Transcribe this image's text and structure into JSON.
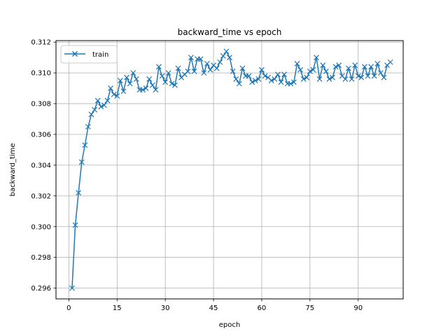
{
  "chart_data": {
    "type": "line",
    "title": "backward_time vs epoch",
    "xlabel": "epoch",
    "ylabel": "backward_time",
    "xlim": [
      -4.0,
      104.0
    ],
    "ylim": [
      0.2953,
      0.3121
    ],
    "x_ticks": [
      0,
      15,
      30,
      45,
      60,
      75,
      90
    ],
    "y_ticks": [
      0.296,
      0.298,
      0.3,
      0.302,
      0.304,
      0.306,
      0.308,
      0.31,
      0.312
    ],
    "y_tick_labels": [
      "0.296",
      "0.298",
      "0.300",
      "0.302",
      "0.304",
      "0.306",
      "0.308",
      "0.310",
      "0.312"
    ],
    "grid": true,
    "legend_position": "upper-left",
    "series": [
      {
        "name": "train",
        "color": "#1f77b4",
        "marker": "x",
        "x": [
          1,
          2,
          3,
          4,
          5,
          6,
          7,
          8,
          9,
          10,
          11,
          12,
          13,
          14,
          15,
          16,
          17,
          18,
          19,
          20,
          21,
          22,
          23,
          24,
          25,
          26,
          27,
          28,
          29,
          30,
          31,
          32,
          33,
          34,
          35,
          36,
          37,
          38,
          39,
          40,
          41,
          42,
          43,
          44,
          45,
          46,
          47,
          48,
          49,
          50,
          51,
          52,
          53,
          54,
          55,
          56,
          57,
          58,
          59,
          60,
          61,
          62,
          63,
          64,
          65,
          66,
          67,
          68,
          69,
          70,
          71,
          72,
          73,
          74,
          75,
          76,
          77,
          78,
          79,
          80,
          81,
          82,
          83,
          84,
          85,
          86,
          87,
          88,
          89,
          90,
          91,
          92,
          93,
          94,
          95,
          96,
          97,
          98,
          99,
          100
        ],
        "y": [
          0.296,
          0.3001,
          0.3022,
          0.3042,
          0.3053,
          0.3065,
          0.3073,
          0.3076,
          0.3082,
          0.3078,
          0.3079,
          0.3082,
          0.309,
          0.3086,
          0.3085,
          0.3095,
          0.3088,
          0.3097,
          0.3093,
          0.31,
          0.3096,
          0.3089,
          0.3089,
          0.309,
          0.3096,
          0.3092,
          0.3089,
          0.3104,
          0.3098,
          0.3094,
          0.31,
          0.3093,
          0.3092,
          0.3103,
          0.3097,
          0.3099,
          0.3101,
          0.311,
          0.3101,
          0.3109,
          0.3109,
          0.31,
          0.3106,
          0.3102,
          0.3105,
          0.3103,
          0.3107,
          0.3111,
          0.3114,
          0.311,
          0.3101,
          0.3096,
          0.3093,
          0.3103,
          0.3098,
          0.3098,
          0.3094,
          0.3095,
          0.3096,
          0.3102,
          0.3098,
          0.3097,
          0.3095,
          0.3096,
          0.3099,
          0.3094,
          0.3099,
          0.3093,
          0.3093,
          0.3094,
          0.3106,
          0.3102,
          0.3096,
          0.3097,
          0.3101,
          0.3102,
          0.311,
          0.3096,
          0.3105,
          0.3101,
          0.3096,
          0.3097,
          0.3104,
          0.3105,
          0.3098,
          0.3096,
          0.3103,
          0.3096,
          0.3105,
          0.3098,
          0.3097,
          0.3104,
          0.3098,
          0.3104,
          0.3098,
          0.3106,
          0.31,
          0.3097,
          0.3105,
          0.3107
        ]
      }
    ]
  }
}
